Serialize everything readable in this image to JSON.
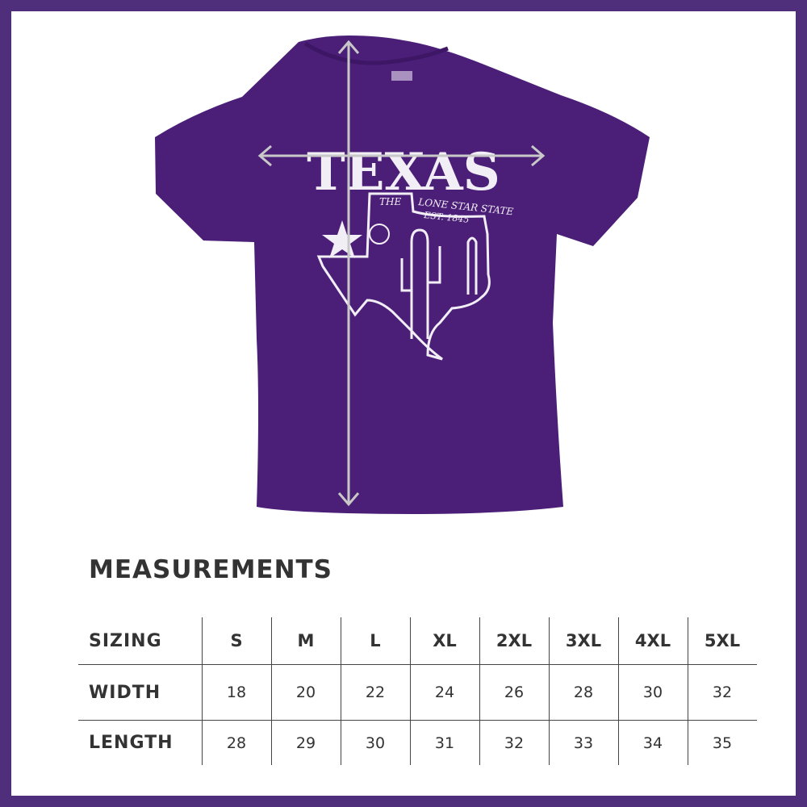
{
  "colors": {
    "border": "#4f2f7c",
    "shirt": "#4b1f78",
    "print": "#f2eef6",
    "arrow": "#c8c8c8",
    "text": "#333333"
  },
  "graphic": {
    "headline": "TEXAS",
    "the": "THE",
    "tagline": "LONE STAR STATE",
    "established": "EST. 1845"
  },
  "measurements": {
    "title": "MEASUREMENTS",
    "header": {
      "label": "SIZING",
      "sizes": [
        "S",
        "M",
        "L",
        "XL",
        "2XL",
        "3XL",
        "4XL",
        "5XL"
      ]
    },
    "rows": [
      {
        "label": "WIDTH",
        "values": [
          "18",
          "20",
          "22",
          "24",
          "26",
          "28",
          "30",
          "32"
        ]
      },
      {
        "label": "LENGTH",
        "values": [
          "28",
          "29",
          "30",
          "31",
          "32",
          "33",
          "34",
          "35"
        ]
      }
    ]
  }
}
